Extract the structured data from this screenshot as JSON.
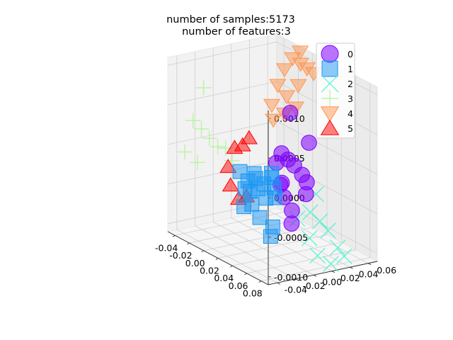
{
  "chart_data": {
    "type": "scatter",
    "projection": "3d",
    "title": [
      "number of samples:5173",
      "number of features:3"
    ],
    "xlabel": "",
    "ylabel": "",
    "zlabel": "",
    "xlim": [
      -0.05,
      0.09
    ],
    "ylim": [
      -0.05,
      0.07
    ],
    "zlim": [
      -0.0011,
      0.0011
    ],
    "x_ticks": [
      "-0.04",
      "-0.02",
      "0.00",
      "0.02",
      "0.04",
      "0.06",
      "0.08"
    ],
    "y_ticks": [
      "-0.04",
      "-0.02",
      "0.00",
      "0.02",
      "0.04",
      "0.06"
    ],
    "z_ticks": [
      "-0.0010",
      "-0.0005",
      "0.0000",
      "0.0005",
      "0.0010"
    ],
    "grid": true,
    "legend_position": "top-right",
    "series": [
      {
        "name": "0",
        "marker": "circle",
        "color": "#8000ff",
        "points": [
          [
            0.03,
            0.012,
            0.00012
          ],
          [
            0.034,
            0.016,
            5e-05
          ],
          [
            0.04,
            0.018,
            0.0
          ],
          [
            0.046,
            0.022,
            -0.0001
          ],
          [
            0.05,
            0.024,
            -0.00018
          ],
          [
            0.036,
            0.01,
            -0.0004
          ],
          [
            0.042,
            0.014,
            -0.00055
          ],
          [
            0.054,
            0.02,
            -0.0003
          ],
          [
            0.028,
            0.008,
            0.0
          ],
          [
            0.032,
            0.02,
            0.00062
          ],
          [
            0.048,
            0.028,
            0.0003
          ],
          [
            0.044,
            0.012,
            -0.0007
          ],
          [
            0.038,
            0.006,
            -0.0002
          ],
          [
            0.026,
            0.014,
            -0.0003
          ]
        ]
      },
      {
        "name": "1",
        "marker": "square",
        "color": "#1996f3",
        "points": [
          [
            0.0,
            -0.01,
            -0.0002
          ],
          [
            0.006,
            -0.006,
            -0.0003
          ],
          [
            0.012,
            -0.002,
            -0.00025
          ],
          [
            0.018,
            0.002,
            -0.0003
          ],
          [
            0.024,
            0.006,
            -0.0002
          ],
          [
            0.004,
            -0.002,
            -0.00045
          ],
          [
            0.01,
            0.002,
            -0.0004
          ],
          [
            0.016,
            0.006,
            -0.0005
          ],
          [
            0.022,
            0.01,
            -0.00035
          ],
          [
            0.008,
            -0.012,
            -0.0006
          ],
          [
            0.014,
            -0.008,
            -0.00055
          ],
          [
            0.02,
            -0.004,
            -0.0007
          ],
          [
            0.028,
            0.004,
            -0.0008
          ],
          [
            0.026,
            0.008,
            -0.00045
          ],
          [
            0.002,
            0.004,
            -0.00025
          ],
          [
            0.016,
            0.012,
            -0.0002
          ],
          [
            0.03,
            0.0,
            -0.0009
          ],
          [
            0.012,
            -0.014,
            -0.00035
          ]
        ]
      },
      {
        "name": "2",
        "marker": "x",
        "color": "#4df3ce",
        "points": [
          [
            0.06,
            0.02,
            -0.0005
          ],
          [
            0.066,
            0.026,
            -0.0006
          ],
          [
            0.072,
            0.03,
            -0.0007
          ],
          [
            0.078,
            0.036,
            -0.0009
          ],
          [
            0.082,
            0.04,
            -0.001
          ],
          [
            0.07,
            0.02,
            -0.001
          ],
          [
            0.076,
            0.03,
            -0.0011
          ],
          [
            0.058,
            0.028,
            -0.0003
          ],
          [
            0.064,
            0.016,
            -0.0008
          ],
          [
            0.052,
            0.012,
            -0.0006
          ]
        ]
      },
      {
        "name": "3",
        "marker": "plus",
        "color": "#b2f396",
        "points": [
          [
            -0.04,
            -0.03,
            0.0003
          ],
          [
            -0.036,
            -0.024,
            0.0002
          ],
          [
            -0.03,
            -0.02,
            0.0001
          ],
          [
            -0.044,
            -0.036,
            -0.0001
          ],
          [
            -0.026,
            -0.014,
            0.0
          ],
          [
            -0.034,
            -0.03,
            -0.0002
          ],
          [
            -0.02,
            -0.01,
            0.0
          ],
          [
            -0.038,
            -0.02,
            0.0007
          ],
          [
            -0.016,
            -0.006,
            -0.00015
          ]
        ]
      },
      {
        "name": "4",
        "marker": "triangle-down",
        "color": "#ff964f",
        "points": [
          [
            0.005,
            0.035,
            0.001
          ],
          [
            0.01,
            0.04,
            0.00115
          ],
          [
            0.016,
            0.044,
            0.0011
          ],
          [
            0.02,
            0.048,
            0.00105
          ],
          [
            0.008,
            0.05,
            0.0012
          ],
          [
            0.002,
            0.03,
            0.0008
          ],
          [
            0.012,
            0.032,
            0.0007
          ],
          [
            0.018,
            0.04,
            0.00085
          ],
          [
            0.0,
            0.025,
            0.00055
          ],
          [
            0.014,
            0.028,
            0.0005
          ],
          [
            0.022,
            0.034,
            0.0006
          ],
          [
            0.006,
            0.022,
            0.0004
          ],
          [
            0.024,
            0.052,
            0.001
          ]
        ]
      },
      {
        "name": "5",
        "marker": "triangle-up",
        "color": "#ff0000",
        "points": [
          [
            -0.01,
            -0.008,
            5e-05
          ],
          [
            -0.004,
            -0.004,
            0.0001
          ],
          [
            0.0,
            0.0,
            0.0002
          ],
          [
            -0.014,
            -0.012,
            -0.0002
          ],
          [
            -0.008,
            -0.014,
            -0.0004
          ],
          [
            -0.002,
            -0.01,
            -0.00055
          ],
          [
            0.004,
            -0.006,
            -0.0005
          ]
        ]
      }
    ]
  }
}
